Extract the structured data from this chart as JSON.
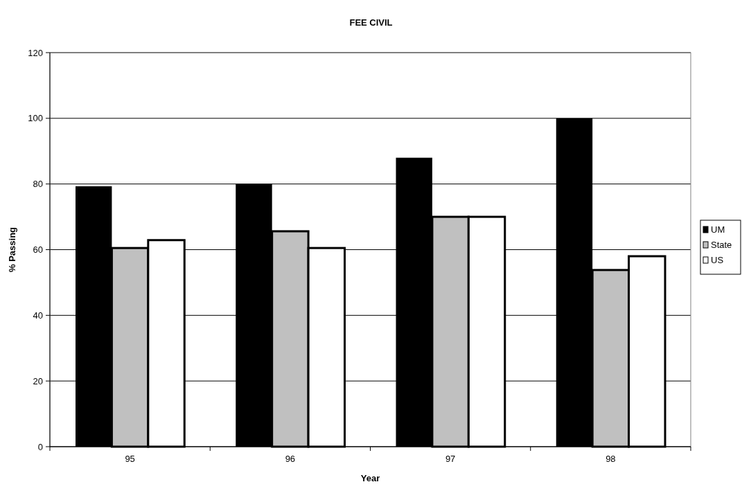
{
  "chart_data": {
    "type": "bar",
    "title": "FEE CIVIL",
    "xlabel": "Year",
    "ylabel": "% Passing",
    "categories": [
      "95",
      "96",
      "97",
      "98"
    ],
    "series": [
      {
        "name": "UM",
        "color": "#000000",
        "values": [
          79.3,
          80,
          88,
          100
        ]
      },
      {
        "name": "State",
        "color": "#c0c0c0",
        "values": [
          60.5,
          65.6,
          70,
          53.8
        ]
      },
      {
        "name": "US",
        "color": "#ffffff",
        "values": [
          62.9,
          60.5,
          70,
          58
        ]
      }
    ],
    "ylim": [
      0,
      120
    ],
    "yticks": [
      0,
      20,
      40,
      60,
      80,
      100,
      120
    ],
    "grid": "y",
    "legend": "right"
  }
}
